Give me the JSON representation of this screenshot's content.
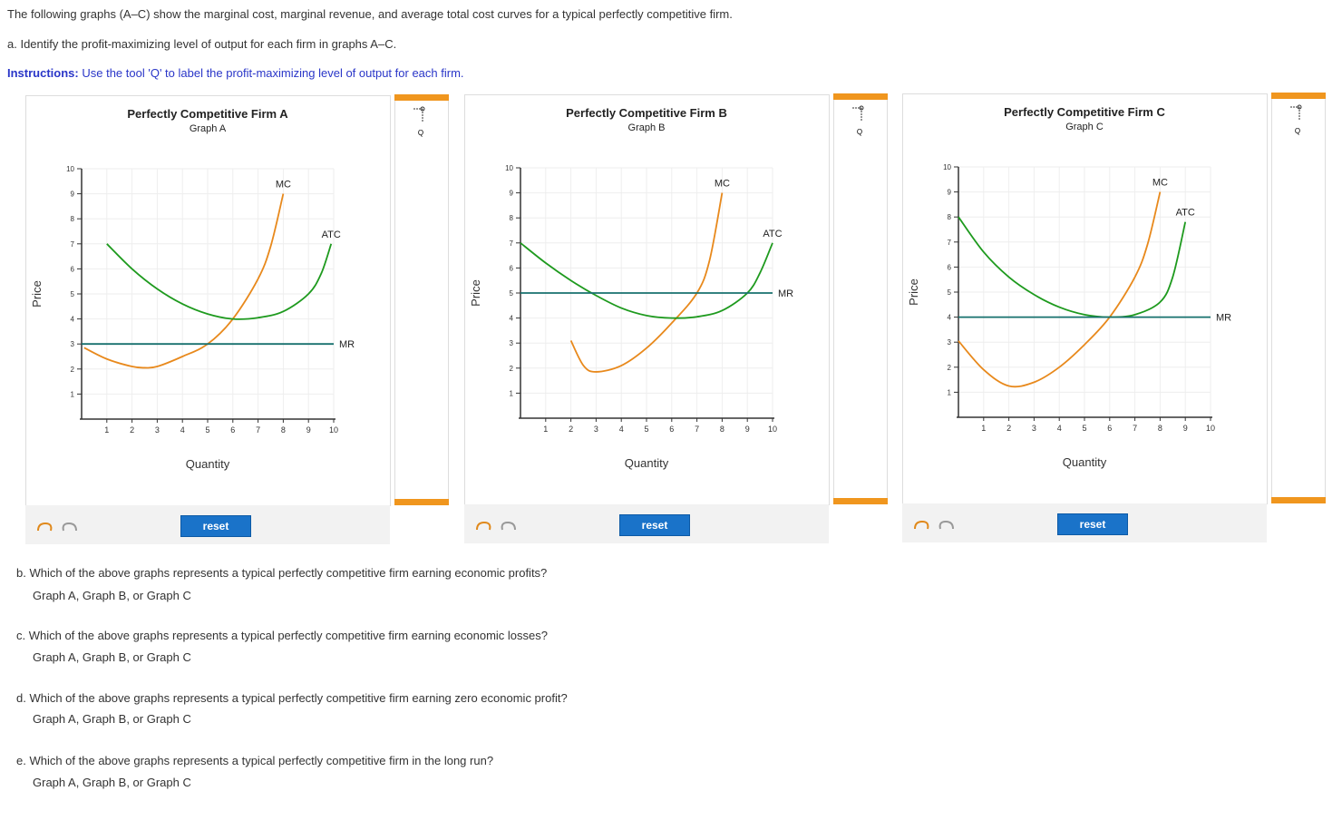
{
  "intro": "The following graphs (A–C) show the marginal cost, marginal revenue, and average total cost curves for a typical perfectly competitive firm.",
  "part_a": "a. Identify the profit-maximizing level of output for each firm in graphs A–C.",
  "instructions": {
    "label": "Instructions:",
    "text": "Use the tool 'Q' to label the profit-maximizing level of output for each firm."
  },
  "panels": [
    {
      "tool": "Q",
      "reset": "reset"
    },
    {
      "tool": "Q",
      "reset": "reset"
    },
    {
      "tool": "Q",
      "reset": "reset"
    }
  ],
  "questions": [
    {
      "text": "b. Which of the above graphs represents a typical perfectly competitive firm earning economic profits?",
      "answer": "Graph A, Graph B, or Graph C"
    },
    {
      "text": "c. Which of the above graphs represents a typical perfectly competitive firm earning economic losses?",
      "answer": "Graph A, Graph B, or Graph C"
    },
    {
      "text": "d. Which of the above graphs represents a typical perfectly competitive firm earning zero economic profit?",
      "answer": "Graph A, Graph B, or Graph C"
    },
    {
      "text": "e. Which of the above graphs represents a typical perfectly competitive firm in the long run?",
      "answer": "Graph A, Graph B, or Graph C"
    }
  ],
  "chart_data": [
    {
      "type": "line",
      "title": "Perfectly Competitive Firm A",
      "subtitle": "Graph A",
      "xlabel": "Quantity",
      "ylabel": "Price",
      "xlim": [
        0,
        10
      ],
      "ylim": [
        0,
        10
      ],
      "xticks": [
        1,
        2,
        3,
        4,
        5,
        6,
        7,
        8,
        9,
        10
      ],
      "yticks": [
        1,
        2,
        3,
        4,
        5,
        6,
        7,
        8,
        9,
        10
      ],
      "grid": true,
      "series": [
        {
          "name": "MC",
          "color": "#e8891c",
          "x": [
            0.1,
            1,
            2,
            2.5,
            3,
            4,
            5,
            6,
            7,
            7.5,
            8
          ],
          "values": [
            2.85,
            2.4,
            2.1,
            2.05,
            2.1,
            2.5,
            3.0,
            4.0,
            5.6,
            6.9,
            9
          ]
        },
        {
          "name": "ATC",
          "color": "#1e9a1e",
          "x": [
            1,
            2,
            3,
            4,
            5,
            6,
            7,
            8,
            9,
            9.5,
            9.9
          ],
          "values": [
            7,
            6.0,
            5.2,
            4.6,
            4.2,
            4.0,
            4.05,
            4.3,
            5.0,
            5.8,
            7
          ]
        },
        {
          "name": "MR",
          "color": "#17706e",
          "x": [
            0,
            10
          ],
          "values": [
            3,
            3
          ]
        }
      ]
    },
    {
      "type": "line",
      "title": "Perfectly Competitive Firm B",
      "subtitle": "Graph B",
      "xlabel": "Quantity",
      "ylabel": "Price",
      "xlim": [
        0,
        10
      ],
      "ylim": [
        0,
        10
      ],
      "xticks": [
        1,
        2,
        3,
        4,
        5,
        6,
        7,
        8,
        9,
        10
      ],
      "yticks": [
        1,
        2,
        3,
        4,
        5,
        6,
        7,
        8,
        9,
        10
      ],
      "grid": true,
      "series": [
        {
          "name": "MC",
          "color": "#e8891c",
          "x": [
            2,
            2.5,
            3,
            4,
            5,
            6,
            7,
            7.5,
            8
          ],
          "values": [
            3.1,
            2.1,
            1.85,
            2.1,
            2.8,
            3.8,
            5.0,
            6.3,
            9
          ]
        },
        {
          "name": "ATC",
          "color": "#1e9a1e",
          "x": [
            0,
            1,
            2,
            3,
            4,
            5,
            6,
            7,
            8,
            9,
            9.5,
            10
          ],
          "values": [
            7,
            6.2,
            5.5,
            4.9,
            4.4,
            4.1,
            4.0,
            4.05,
            4.3,
            5.0,
            5.8,
            7
          ]
        },
        {
          "name": "MR",
          "color": "#17706e",
          "x": [
            0,
            10
          ],
          "values": [
            5,
            5
          ]
        }
      ]
    },
    {
      "type": "line",
      "title": "Perfectly Competitive Firm C",
      "subtitle": "Graph C",
      "xlabel": "Quantity",
      "ylabel": "Price",
      "xlim": [
        0,
        10
      ],
      "ylim": [
        0,
        10
      ],
      "xticks": [
        1,
        2,
        3,
        4,
        5,
        6,
        7,
        8,
        9,
        10
      ],
      "yticks": [
        1,
        2,
        3,
        4,
        5,
        6,
        7,
        8,
        9,
        10
      ],
      "grid": true,
      "series": [
        {
          "name": "MC",
          "color": "#e8891c",
          "x": [
            0,
            1,
            2,
            3,
            4,
            5,
            6,
            7,
            7.5,
            8
          ],
          "values": [
            3.05,
            1.9,
            1.25,
            1.4,
            2.0,
            2.9,
            4.0,
            5.6,
            6.9,
            9
          ]
        },
        {
          "name": "ATC",
          "color": "#1e9a1e",
          "x": [
            0,
            1,
            2,
            3,
            4,
            5,
            6,
            7,
            8,
            8.5,
            9
          ],
          "values": [
            8,
            6.6,
            5.6,
            4.9,
            4.4,
            4.1,
            4.0,
            4.1,
            4.6,
            5.6,
            7.8
          ]
        },
        {
          "name": "MR",
          "color": "#17706e",
          "x": [
            0,
            10
          ],
          "values": [
            4,
            4
          ]
        }
      ]
    }
  ]
}
